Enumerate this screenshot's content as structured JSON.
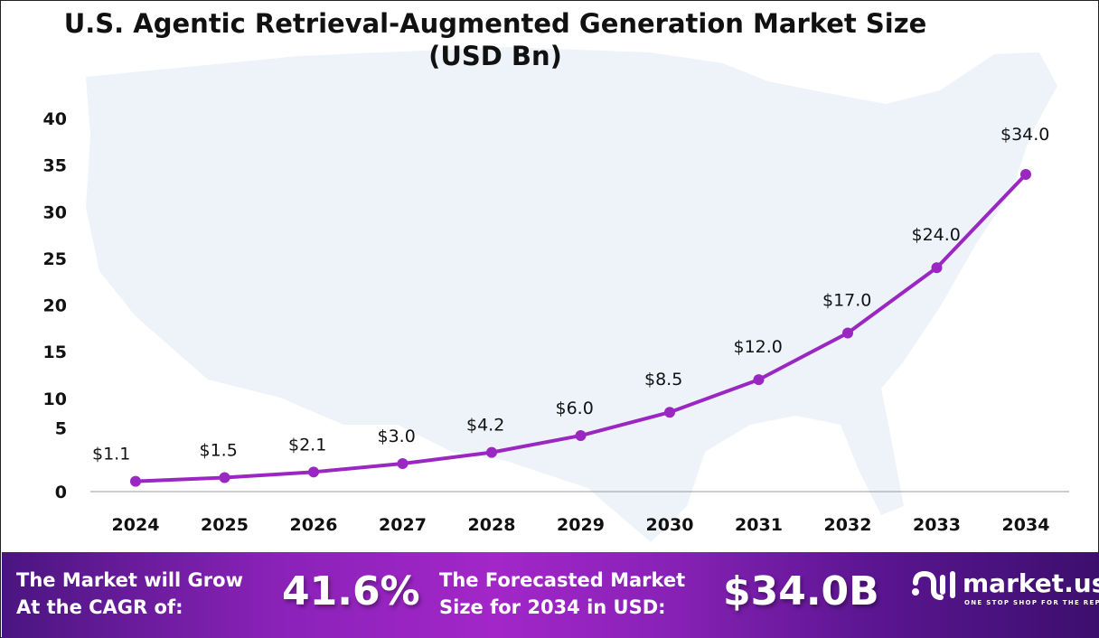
{
  "chart_data": {
    "type": "line",
    "title": "U.S. Agentic Retrieval-Augmented Generation Market Size",
    "subtitle": "(USD Bn)",
    "categories": [
      "2024",
      "2025",
      "2026",
      "2027",
      "2028",
      "2029",
      "2030",
      "2031",
      "2032",
      "2033",
      "2034"
    ],
    "values": [
      1.1,
      1.5,
      2.1,
      3.0,
      4.2,
      6.0,
      8.5,
      12.0,
      17.0,
      24.0,
      34.0
    ],
    "data_labels": [
      "$1.1",
      "$1.5",
      "$2.1",
      "$3.0",
      "$4.2",
      "$6.0",
      "$8.5",
      "$12.0",
      "$17.0",
      "$24.0",
      "$34.0"
    ],
    "yticks": [
      "0",
      "5",
      "10",
      "15",
      "20",
      "25",
      "30",
      "35",
      "40"
    ],
    "ylim": [
      0,
      40
    ],
    "xlabel": "",
    "ylabel": "",
    "grid": false,
    "line_color": "#9b27c3"
  },
  "banner": {
    "cagr_text_1": "The Market will Grow",
    "cagr_text_2": "At the CAGR of:",
    "cagr_value": "41.6%",
    "forecast_text_1": "The Forecasted Market",
    "forecast_text_2": "Size for 2034 in USD:",
    "forecast_value": "$34.0B",
    "logo_name": "market.us",
    "logo_tagline": "ONE STOP SHOP FOR THE REPORTS"
  }
}
